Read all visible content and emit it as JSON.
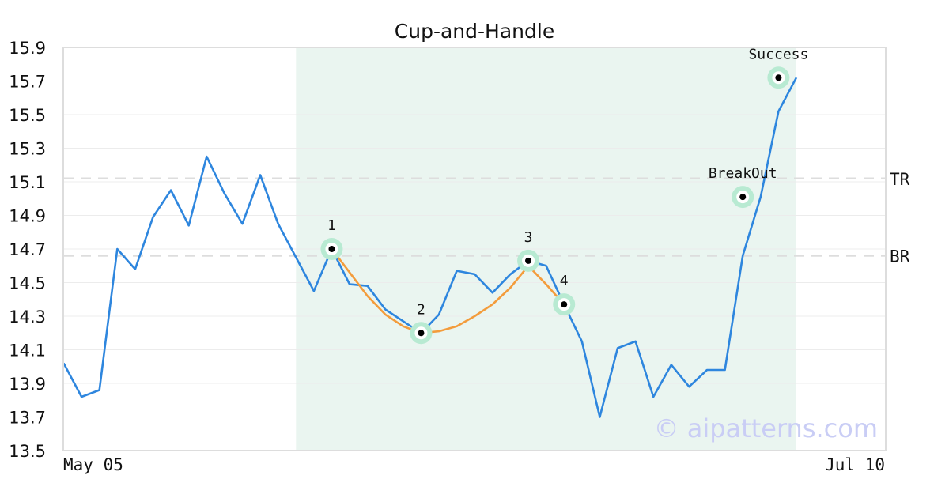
{
  "chart_data": {
    "type": "line",
    "title": "Cup-and-Handle",
    "xlabel": "",
    "ylabel": "",
    "ylim": [
      13.5,
      15.9
    ],
    "yticks": [
      "13.5",
      "13.7",
      "13.9",
      "14.1",
      "14.3",
      "14.5",
      "14.7",
      "14.9",
      "15.1",
      "15.3",
      "15.5",
      "15.7",
      "15.9"
    ],
    "x_start_label": "May 05",
    "x_end_label": "Jul 10",
    "grid": true,
    "colors": {
      "price": "#2e86de",
      "cup": "#f39c3c",
      "highlight": "#eaf5f0",
      "marker_ring": "#b8ead2",
      "level_line": "#dddddd"
    },
    "series": [
      {
        "values": [
          14.02,
          13.82,
          13.86,
          14.7,
          14.58,
          14.89,
          15.05,
          14.84,
          15.25,
          15.03,
          14.85,
          15.14,
          14.85,
          14.65,
          14.45,
          14.7,
          14.49,
          14.48,
          14.34,
          14.27,
          14.2,
          14.31,
          14.57,
          14.55,
          14.44,
          14.55,
          14.63,
          14.6,
          14.37,
          14.15,
          13.7,
          14.11,
          14.15,
          13.82,
          14.01,
          13.88,
          13.98,
          13.98,
          14.66,
          15.01,
          15.52,
          15.72
        ]
      }
    ],
    "cup_curve": [
      [
        15,
        14.7
      ],
      [
        16,
        14.56
      ],
      [
        17,
        14.42
      ],
      [
        18,
        14.31
      ],
      [
        19,
        14.24
      ],
      [
        20,
        14.2
      ],
      [
        21,
        14.21
      ],
      [
        22,
        14.24
      ],
      [
        23,
        14.3
      ],
      [
        24,
        14.37
      ],
      [
        25,
        14.47
      ],
      [
        26,
        14.6
      ],
      [
        27,
        14.49
      ],
      [
        28,
        14.37
      ]
    ],
    "highlight_range": [
      13,
      41
    ],
    "levels": [
      {
        "label": "TR",
        "value": 15.12
      },
      {
        "label": "BR",
        "value": 14.66
      }
    ],
    "annotations": [
      {
        "label": "1",
        "x": 15,
        "y": 14.7,
        "pos": "above"
      },
      {
        "label": "2",
        "x": 20,
        "y": 14.2,
        "pos": "above"
      },
      {
        "label": "3",
        "x": 26,
        "y": 14.63,
        "pos": "above"
      },
      {
        "label": "4",
        "x": 28,
        "y": 14.37,
        "pos": "above"
      },
      {
        "label": "BreakOut",
        "x": 38,
        "y": 15.01,
        "pos": "above"
      },
      {
        "label": "Success",
        "x": 40,
        "y": 15.72,
        "pos": "above"
      }
    ]
  },
  "watermark": "© aipatterns.com"
}
